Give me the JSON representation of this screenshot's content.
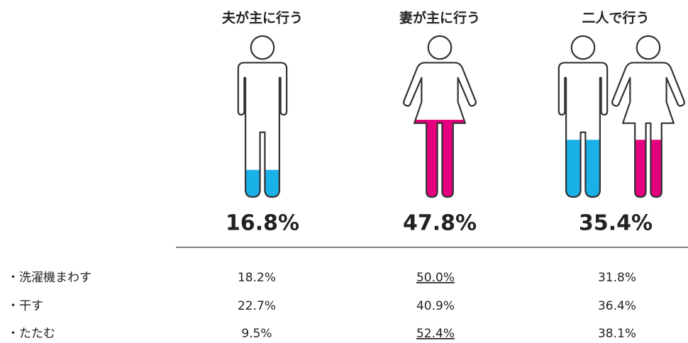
{
  "chart_data": {
    "type": "pictogram",
    "categories": [
      "夫が主に行う",
      "妻が主に行う",
      "二人で行う"
    ],
    "values": [
      16.8,
      47.8,
      35.4
    ],
    "value_labels": [
      "16.8%",
      "47.8%",
      "35.4%"
    ],
    "ylim": [
      0,
      100
    ],
    "figures": [
      [
        "man"
      ],
      [
        "woman"
      ],
      [
        "man",
        "woman"
      ]
    ],
    "colors": {
      "man": "#1ab0e8",
      "woman": "#e4007f"
    }
  },
  "table": {
    "rows": [
      [
        "・洗濯機まわす",
        "18.2%",
        "50.0%",
        "31.8%"
      ],
      [
        "・干す",
        "22.7%",
        "40.9%",
        "36.4%"
      ],
      [
        "・たたむ",
        "9.5%",
        "52.4%",
        "38.1%"
      ]
    ],
    "underline": [
      [
        false,
        false,
        true,
        false
      ],
      [
        false,
        false,
        false,
        false
      ],
      [
        false,
        false,
        true,
        false
      ]
    ]
  }
}
